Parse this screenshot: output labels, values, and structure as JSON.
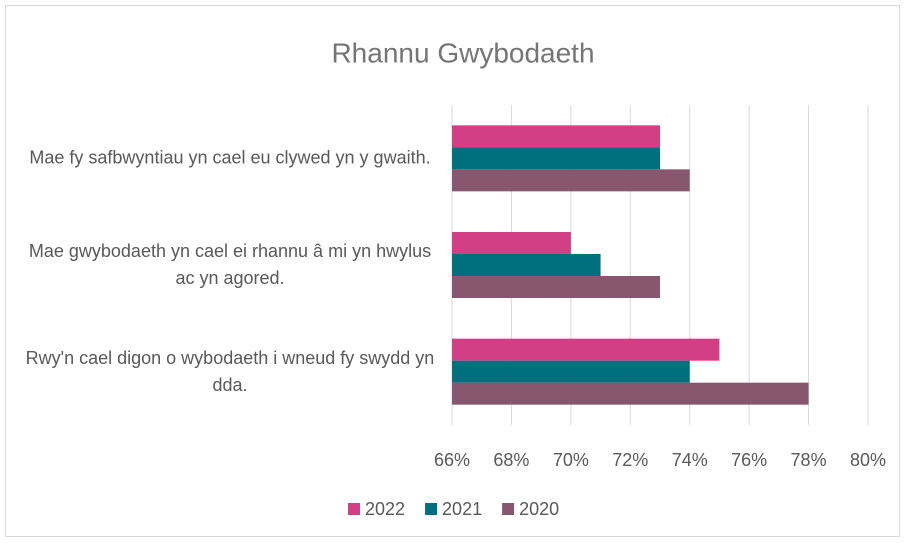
{
  "chart_data": {
    "type": "bar",
    "orientation": "horizontal",
    "title": "Rhannu Gwybodaeth",
    "categories": [
      "Mae fy safbwyntiau yn cael eu clywed yn y gwaith.",
      "Mae gwybodaeth yn cael ei rhannu â mi yn hwylus ac yn agored.",
      "Rwy'n cael digon o wybodaeth i wneud fy swydd yn dda."
    ],
    "series": [
      {
        "name": "2022",
        "color": "#d33f85",
        "values": [
          73,
          70,
          75
        ]
      },
      {
        "name": "2021",
        "color": "#00707f",
        "values": [
          73,
          71,
          74
        ]
      },
      {
        "name": "2020",
        "color": "#87566f",
        "values": [
          74,
          73,
          78
        ]
      }
    ],
    "xlim": [
      66,
      80
    ],
    "xticks": [
      {
        "value": 66,
        "label": "66%"
      },
      {
        "value": 68,
        "label": "68%"
      },
      {
        "value": 70,
        "label": "70%"
      },
      {
        "value": 72,
        "label": "72%"
      },
      {
        "value": 74,
        "label": "74%"
      },
      {
        "value": 76,
        "label": "76%"
      },
      {
        "value": 78,
        "label": "78%"
      },
      {
        "value": 80,
        "label": "80%"
      }
    ],
    "grid": true,
    "legend": "bottom"
  }
}
